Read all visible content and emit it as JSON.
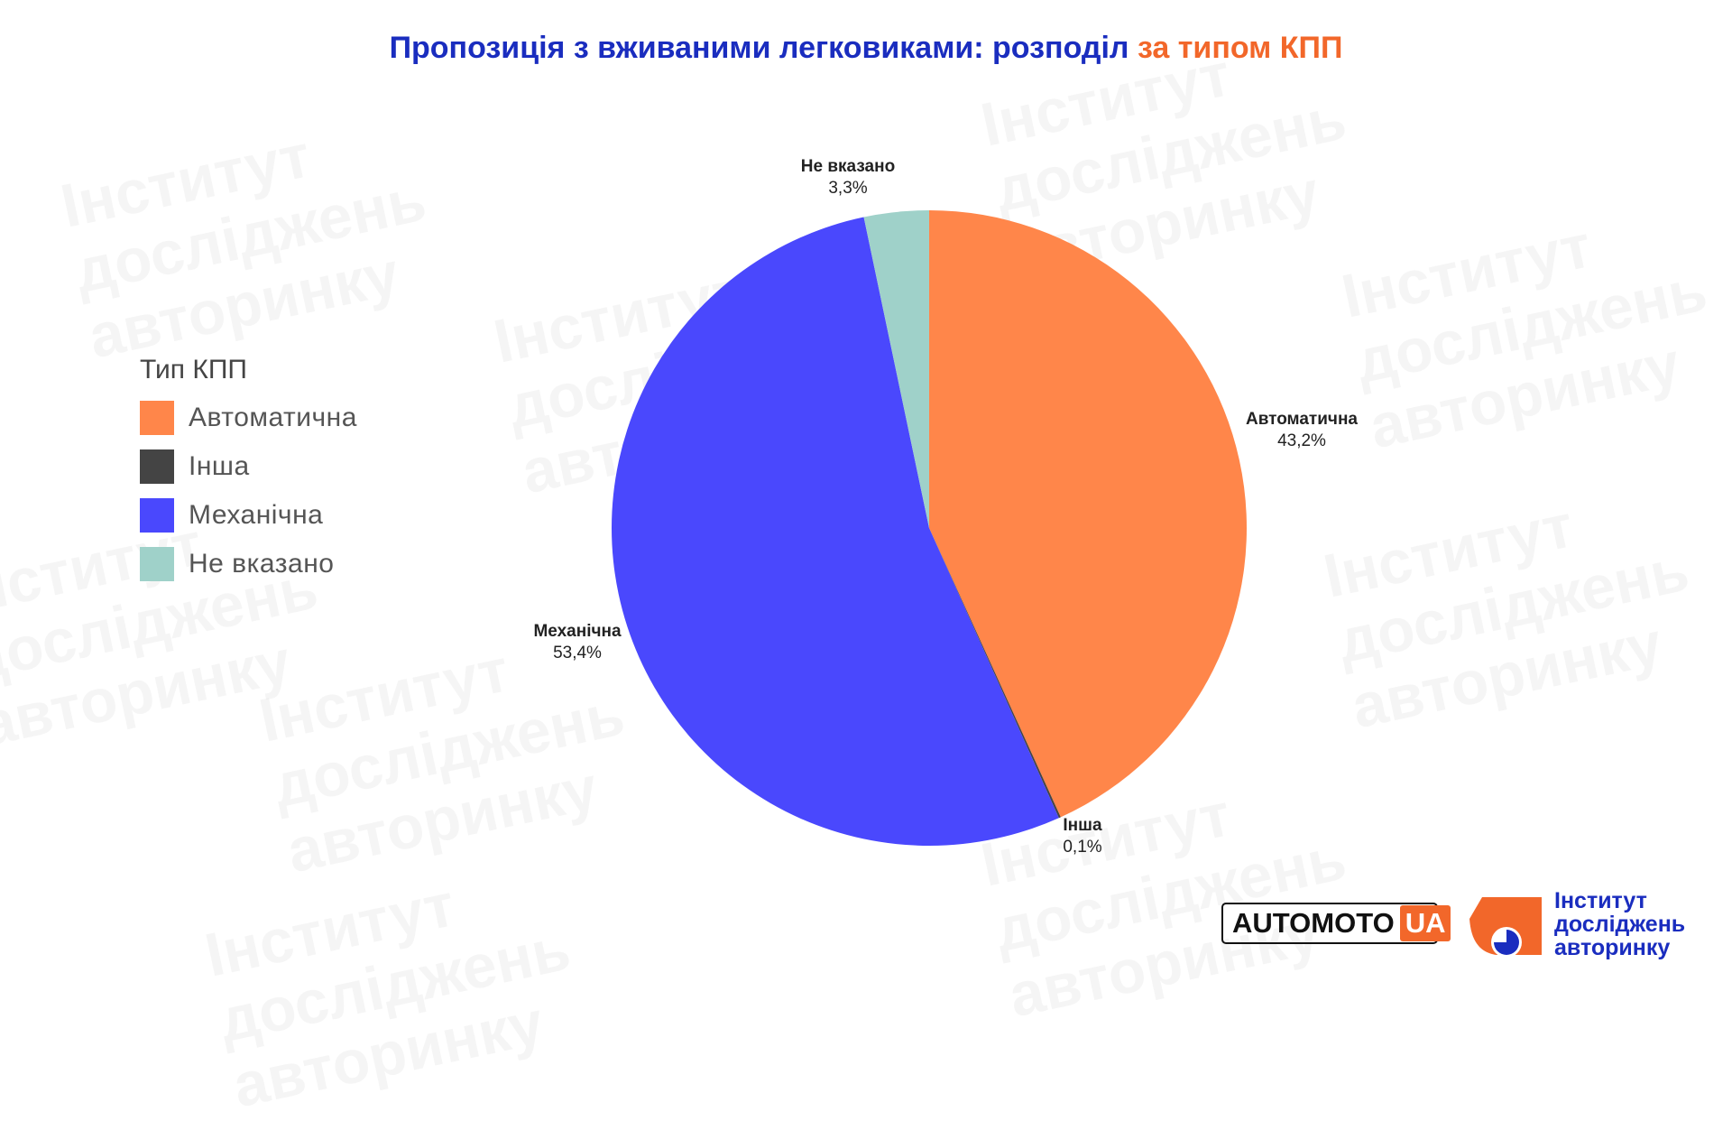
{
  "title": {
    "main": "Пропозиція з вживаними легковиками: розподіл ",
    "accent": "за типом КПП"
  },
  "legend": {
    "title": "Тип КПП",
    "items": [
      {
        "label": "Автоматична",
        "color": "#ff864a"
      },
      {
        "label": "Інша",
        "color": "#444444"
      },
      {
        "label": "Механічна",
        "color": "#4a48fd"
      },
      {
        "label": "Не вказано",
        "color": "#9fd1c9"
      }
    ]
  },
  "chart_data": {
    "type": "pie",
    "title": "Пропозиція з вживаними легковиками: розподіл за типом КПП",
    "legend_title": "Тип КПП",
    "legend_position": "left",
    "slices": [
      {
        "label": "Автоматична",
        "value": 43.2,
        "display": "43,2%",
        "color": "#ff864a"
      },
      {
        "label": "Інша",
        "value": 0.1,
        "display": "0,1%",
        "color": "#444444"
      },
      {
        "label": "Механічна",
        "value": 53.4,
        "display": "53,4%",
        "color": "#4a48fd"
      },
      {
        "label": "Не вказано",
        "value": 3.3,
        "display": "3,3%",
        "color": "#9fd1c9"
      }
    ]
  },
  "logos": {
    "automoto_main": "AUTOMOTO",
    "automoto_suffix": "UA",
    "institute_line1": "Інститут",
    "institute_line2": "досліджень",
    "institute_line3": "авторинку"
  },
  "watermark": {
    "line1": "Інститут",
    "line2": "досліджень",
    "line3": "авторинку"
  }
}
